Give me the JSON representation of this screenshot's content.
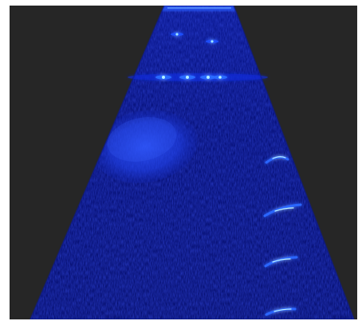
{
  "image": {
    "kind": "ultrasound-sector-scan",
    "colormap": "blue",
    "background_color": "#262626",
    "border_color": "#ffffff",
    "sector_base_color": "#06107a",
    "speckle_colors": [
      "#1a35ff",
      "#0c22c8",
      "#2a4dff",
      "#081477"
    ],
    "highlight_color": "#9fe7ff",
    "pin_target_rows": [
      {
        "label": "",
        "count": 2
      },
      {
        "label": "",
        "count": 4
      }
    ],
    "lateral_targets_count": 4,
    "inclusion_shape": "ellipse"
  }
}
